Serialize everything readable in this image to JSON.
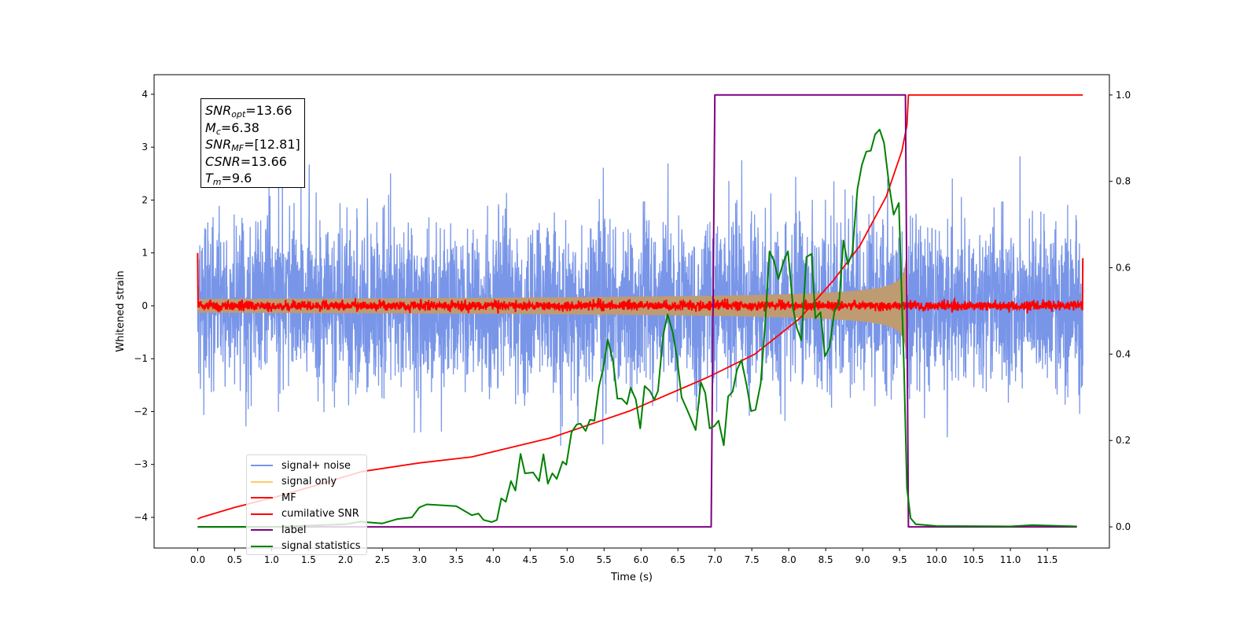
{
  "chart_data": {
    "type": "line",
    "xlabel": "Time (s)",
    "ylabel": "Whitened strain",
    "xlim": [
      -0.59,
      12.34
    ],
    "ylim_left": [
      -4.58,
      4.37
    ],
    "ylim_right": [
      -0.049,
      1.047
    ],
    "xticks": [
      "0.0",
      "0.5",
      "1.0",
      "1.5",
      "2.0",
      "2.5",
      "3.0",
      "3.5",
      "4.0",
      "4.5",
      "5.0",
      "5.5",
      "6.0",
      "6.5",
      "7.0",
      "7.5",
      "8.0",
      "8.5",
      "9.0",
      "9.5",
      "10.0",
      "10.5",
      "11.0",
      "11.5"
    ],
    "yticks_left": [
      "−4",
      "−3",
      "−2",
      "−1",
      "0",
      "1",
      "2",
      "3",
      "4"
    ],
    "yticks_right": [
      "0.0",
      "0.2",
      "0.4",
      "0.6",
      "0.8",
      "1.0"
    ],
    "grid": false,
    "legend_placement": "lower-left",
    "annotation": [
      {
        "var": "SNR",
        "sub": "opt",
        "value": "=13.66"
      },
      {
        "var": "M",
        "sub": "c",
        "value": "=6.38"
      },
      {
        "var": "SNR",
        "sub": "MF",
        "value": "=[12.81]"
      },
      {
        "var": "CSNR",
        "sub": "",
        "value": "=13.66"
      },
      {
        "var": "T",
        "sub": "m",
        "value": "=9.6"
      }
    ],
    "series": [
      {
        "name": "signal+ noise",
        "axis": "left",
        "color": "#7895e8"
      },
      {
        "name": "signal only",
        "axis": "left",
        "color": "#ffc966",
        "merger_time": 9.6
      },
      {
        "name": "MF",
        "axis": "left",
        "color": "#ff0000",
        "start": 1.0,
        "end": 0.9
      },
      {
        "name": "cumilative SNR",
        "axis": "right",
        "color": "#ff0000",
        "x": [
          0,
          0.05,
          0.5,
          1.05,
          1.58,
          2.22,
          3.0,
          3.71,
          4.78,
          5.84,
          6.9,
          7.54,
          8.15,
          8.6,
          8.96,
          9.32,
          9.53,
          9.6,
          9.62,
          11.98
        ],
        "y": [
          0.018,
          0.022,
          0.045,
          0.069,
          0.095,
          0.128,
          0.148,
          0.162,
          0.206,
          0.268,
          0.346,
          0.4,
          0.483,
          0.57,
          0.65,
          0.765,
          0.87,
          0.93,
          1.0,
          1.0
        ]
      },
      {
        "name": "label",
        "axis": "right",
        "color": "#800080",
        "x": [
          0,
          6.95,
          7.0,
          9.58,
          9.62,
          11.9
        ],
        "y": [
          0,
          0,
          1,
          1,
          0,
          0
        ]
      },
      {
        "name": "signal statistics",
        "axis": "right",
        "color": "#008000",
        "x": [
          0,
          1.0,
          2.0,
          2.2,
          2.5,
          2.7,
          2.9,
          3.0,
          3.1,
          3.5,
          3.71,
          3.8,
          3.87,
          3.98,
          4.05,
          4.11,
          4.17,
          4.24,
          4.3,
          4.37,
          4.43,
          4.54,
          4.62,
          4.68,
          4.74,
          4.8,
          4.86,
          4.94,
          4.99,
          5.06,
          5.13,
          5.18,
          5.25,
          5.31,
          5.37,
          5.43,
          5.49,
          5.55,
          5.62,
          5.68,
          5.74,
          5.81,
          5.86,
          5.93,
          5.99,
          6.05,
          6.12,
          6.18,
          6.23,
          6.3,
          6.36,
          6.43,
          6.49,
          6.55,
          6.62,
          6.68,
          6.74,
          6.81,
          6.87,
          6.93,
          6.99,
          7.05,
          7.12,
          7.18,
          7.24,
          7.3,
          7.36,
          7.43,
          7.49,
          7.55,
          7.62,
          7.68,
          7.74,
          7.8,
          7.86,
          7.93,
          7.99,
          8.06,
          8.11,
          8.17,
          8.24,
          8.31,
          8.36,
          8.43,
          8.49,
          8.55,
          8.62,
          8.68,
          8.74,
          8.8,
          8.86,
          8.93,
          8.99,
          9.05,
          9.11,
          9.17,
          9.23,
          9.29,
          9.36,
          9.42,
          9.49,
          9.56,
          9.6,
          9.65,
          9.72,
          10.0,
          11.0,
          11.3,
          11.9
        ],
        "y": [
          0,
          0,
          0.006,
          0.012,
          0.008,
          0.018,
          0.022,
          0.045,
          0.052,
          0.048,
          0.027,
          0.031,
          0.016,
          0.011,
          0.016,
          0.066,
          0.058,
          0.106,
          0.084,
          0.169,
          0.124,
          0.126,
          0.106,
          0.168,
          0.1,
          0.124,
          0.111,
          0.151,
          0.144,
          0.219,
          0.237,
          0.239,
          0.222,
          0.248,
          0.246,
          0.324,
          0.368,
          0.434,
          0.386,
          0.297,
          0.297,
          0.284,
          0.322,
          0.295,
          0.228,
          0.326,
          0.315,
          0.295,
          0.315,
          0.443,
          0.492,
          0.45,
          0.388,
          0.3,
          0.273,
          0.249,
          0.224,
          0.335,
          0.31,
          0.228,
          0.233,
          0.246,
          0.189,
          0.302,
          0.313,
          0.364,
          0.386,
          0.328,
          0.268,
          0.271,
          0.332,
          0.468,
          0.638,
          0.616,
          0.574,
          0.614,
          0.638,
          0.505,
          0.461,
          0.432,
          0.625,
          0.632,
          0.483,
          0.497,
          0.395,
          0.415,
          0.501,
          0.515,
          0.663,
          0.608,
          0.634,
          0.783,
          0.838,
          0.869,
          0.871,
          0.909,
          0.92,
          0.889,
          0.789,
          0.723,
          0.75,
          0.364,
          0.09,
          0.02,
          0.006,
          0.002,
          0.001,
          0.004,
          0.001
        ]
      }
    ]
  }
}
